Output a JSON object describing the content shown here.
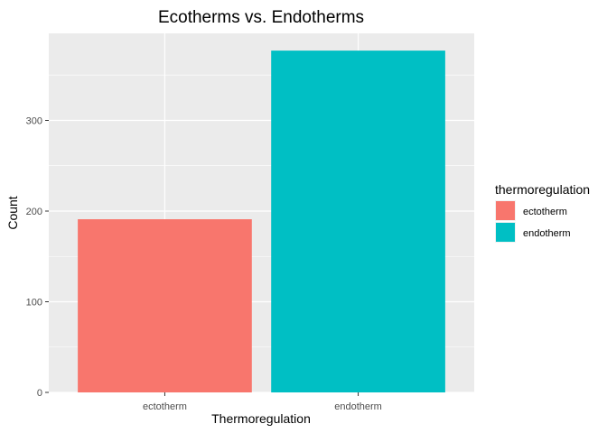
{
  "chart_data": {
    "type": "bar",
    "title": "Ecotherms vs. Endotherms",
    "xlabel": "Thermoregulation",
    "ylabel": "Count",
    "categories": [
      "ectotherm",
      "endotherm"
    ],
    "values": [
      191,
      377
    ],
    "colors": [
      "#F8766D",
      "#00BFC4"
    ],
    "ylim": [
      0,
      396
    ],
    "yticks": [
      0,
      100,
      200,
      300
    ],
    "grid": true,
    "legend": {
      "title": "thermoregulation",
      "position": "right",
      "entries": [
        "ectotherm",
        "endotherm"
      ]
    }
  },
  "theme": {
    "panel_bg": "#EBEBEB",
    "grid_color": "#FFFFFF",
    "tick_color": "#333333",
    "legend_key_bg": "#F2F2F2"
  }
}
